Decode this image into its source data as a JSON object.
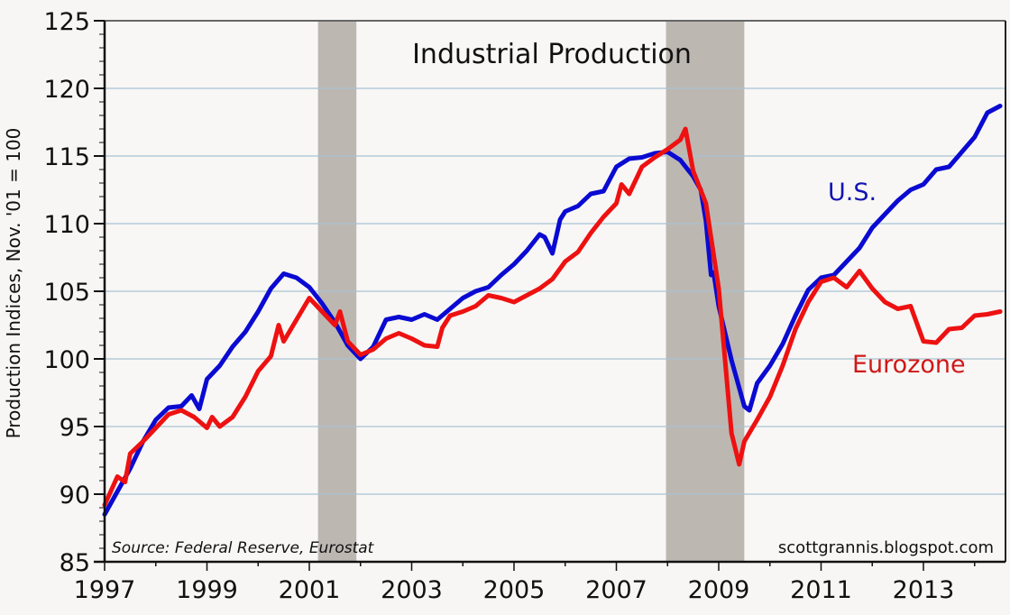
{
  "chart_data": {
    "type": "line",
    "title": "Industrial Production",
    "xlabel": "",
    "ylabel": "Production Indices, Nov. '01 = 100",
    "xlim": [
      1997.0,
      2014.75
    ],
    "ylim": [
      85,
      125
    ],
    "yticks": [
      85,
      90,
      95,
      100,
      105,
      110,
      115,
      120,
      125
    ],
    "ytick_labels": [
      "85",
      "90",
      "95",
      "100",
      "105",
      "110",
      "115",
      "120",
      "125"
    ],
    "xticks": [
      1997,
      1999,
      2001,
      2003,
      2005,
      2007,
      2009,
      2011,
      2013
    ],
    "xtick_labels": [
      "1997",
      "1999",
      "2001",
      "2003",
      "2005",
      "2007",
      "2009",
      "2011",
      "2013"
    ],
    "grid": "horizontal",
    "recessions": [
      [
        2001.17,
        2001.92
      ],
      [
        2007.97,
        2009.5
      ]
    ],
    "source": "Source: Federal Reserve, Eurostat",
    "credit": "scottgrannis.blogspot.com",
    "series": [
      {
        "name": "U.S.",
        "color": "#0a0ad2",
        "x": [
          1997.0,
          1997.25,
          1997.5,
          1997.75,
          1998.0,
          1998.25,
          1998.5,
          1998.7,
          1998.85,
          1999.0,
          1999.25,
          1999.5,
          1999.75,
          2000.0,
          2000.25,
          2000.5,
          2000.75,
          2001.0,
          2001.25,
          2001.5,
          2001.75,
          2002.0,
          2002.25,
          2002.5,
          2002.75,
          2003.0,
          2003.25,
          2003.5,
          2003.75,
          2004.0,
          2004.25,
          2004.5,
          2004.75,
          2005.0,
          2005.25,
          2005.5,
          2005.6,
          2005.75,
          2005.9,
          2006.0,
          2006.25,
          2006.5,
          2006.75,
          2007.0,
          2007.25,
          2007.5,
          2007.75,
          2008.0,
          2008.25,
          2008.5,
          2008.65,
          2008.75,
          2008.85,
          2008.9,
          2009.0,
          2009.25,
          2009.5,
          2009.6,
          2009.75,
          2010.0,
          2010.25,
          2010.5,
          2010.75,
          2011.0,
          2011.25,
          2011.5,
          2011.75,
          2012.0,
          2012.25,
          2012.5,
          2012.75,
          2013.0,
          2013.25,
          2013.5,
          2013.75,
          2014.0,
          2014.25,
          2014.5
        ],
        "values": [
          88.5,
          90.2,
          91.9,
          93.9,
          95.5,
          96.4,
          96.5,
          97.3,
          96.3,
          98.5,
          99.5,
          100.9,
          102.0,
          103.5,
          105.2,
          106.3,
          106.0,
          105.3,
          104.1,
          102.7,
          101.0,
          100.0,
          100.9,
          102.9,
          103.1,
          102.9,
          103.3,
          102.9,
          103.7,
          104.5,
          105.0,
          105.3,
          106.2,
          107.0,
          108.0,
          109.2,
          109.0,
          107.8,
          110.3,
          110.9,
          111.3,
          112.2,
          112.4,
          114.2,
          114.8,
          114.9,
          115.2,
          115.3,
          114.7,
          113.5,
          112.5,
          110.2,
          106.2,
          106.4,
          103.9,
          99.9,
          96.5,
          96.2,
          98.2,
          99.5,
          101.1,
          103.2,
          105.1,
          106.0,
          106.2,
          107.2,
          108.2,
          109.7,
          110.7,
          111.7,
          112.5,
          112.9,
          114.0,
          114.2,
          115.3,
          116.4,
          118.2,
          118.7
        ]
      },
      {
        "name": "Eurozone",
        "color": "#ee1111",
        "x": [
          1997.0,
          1997.25,
          1997.4,
          1997.5,
          1997.75,
          1998.0,
          1998.25,
          1998.5,
          1998.75,
          1999.0,
          1999.1,
          1999.25,
          1999.5,
          1999.75,
          2000.0,
          2000.25,
          2000.4,
          2000.5,
          2000.75,
          2001.0,
          2001.25,
          2001.5,
          2001.6,
          2001.75,
          2002.0,
          2002.25,
          2002.5,
          2002.75,
          2003.0,
          2003.25,
          2003.5,
          2003.6,
          2003.75,
          2004.0,
          2004.25,
          2004.5,
          2004.75,
          2005.0,
          2005.25,
          2005.5,
          2005.75,
          2006.0,
          2006.25,
          2006.5,
          2006.75,
          2007.0,
          2007.1,
          2007.25,
          2007.5,
          2007.75,
          2008.0,
          2008.25,
          2008.35,
          2008.5,
          2008.75,
          2009.0,
          2009.25,
          2009.4,
          2009.5,
          2009.75,
          2010.0,
          2010.25,
          2010.5,
          2010.75,
          2011.0,
          2011.25,
          2011.5,
          2011.75,
          2012.0,
          2012.25,
          2012.5,
          2012.75,
          2013.0,
          2013.25,
          2013.5,
          2013.75,
          2014.0,
          2014.25,
          2014.5
        ],
        "values": [
          89.2,
          91.3,
          90.9,
          93.0,
          93.9,
          94.9,
          95.9,
          96.2,
          95.7,
          94.9,
          95.7,
          95.0,
          95.7,
          97.2,
          99.1,
          100.2,
          102.5,
          101.3,
          102.9,
          104.5,
          103.5,
          102.5,
          103.5,
          101.3,
          100.3,
          100.7,
          101.5,
          101.9,
          101.5,
          101.0,
          100.9,
          102.3,
          103.2,
          103.5,
          103.9,
          104.7,
          104.5,
          104.2,
          104.7,
          105.2,
          105.9,
          107.2,
          107.9,
          109.3,
          110.5,
          111.5,
          112.9,
          112.2,
          114.2,
          114.9,
          115.5,
          116.2,
          117.0,
          113.9,
          111.5,
          105.2,
          94.5,
          92.2,
          93.9,
          95.5,
          97.2,
          99.5,
          102.2,
          104.2,
          105.7,
          106.0,
          105.3,
          106.5,
          105.2,
          104.2,
          103.7,
          103.9,
          101.3,
          101.2,
          102.2,
          102.3,
          103.2,
          103.3,
          103.5
        ]
      }
    ],
    "annotations": [
      {
        "text": "U.S.",
        "series": "U.S.",
        "at_x": 2010.8,
        "at_y": 111.5
      },
      {
        "text": "Eurozone",
        "series": "Eurozone",
        "at_x": 2011.9,
        "at_y": 99.3
      }
    ]
  }
}
